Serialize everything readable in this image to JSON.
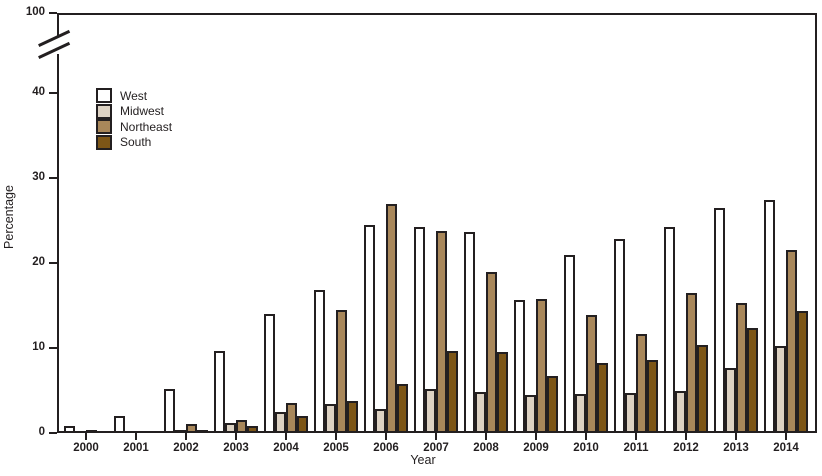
{
  "chart_data": {
    "type": "bar",
    "title": "",
    "xlabel": "Year",
    "ylabel": "Percentage",
    "categories": [
      "2000",
      "2001",
      "2002",
      "2003",
      "2004",
      "2005",
      "2006",
      "2007",
      "2008",
      "2009",
      "2010",
      "2011",
      "2012",
      "2013",
      "2014"
    ],
    "series": [
      {
        "name": "West",
        "color": "#ffffff",
        "values": [
          0.8,
          2.0,
          5.2,
          9.7,
          14.0,
          16.8,
          24.5,
          24.2,
          23.7,
          15.6,
          21.0,
          22.8,
          24.2,
          26.5,
          27.4
        ]
      },
      {
        "name": "Midwest",
        "color": "#ddd2c3",
        "values": [
          0.1,
          0.1,
          0.3,
          1.2,
          2.5,
          3.4,
          2.8,
          5.2,
          4.8,
          4.5,
          4.6,
          4.7,
          4.9,
          7.7,
          10.2
        ]
      },
      {
        "name": "Northeast",
        "color": "#a8875a",
        "values": [
          0.3,
          0.1,
          1.1,
          1.5,
          3.5,
          14.5,
          27.0,
          23.8,
          19.0,
          15.8,
          13.9,
          11.6,
          16.5,
          15.3,
          21.5
        ]
      },
      {
        "name": "South",
        "color": "#7d5617",
        "values": [
          0.1,
          0.1,
          0.4,
          0.8,
          2.0,
          3.8,
          5.8,
          9.6,
          9.5,
          6.7,
          8.2,
          8.6,
          10.3,
          12.3,
          14.4
        ]
      }
    ],
    "y_ticks": [
      0,
      10,
      20,
      30,
      40,
      100
    ],
    "axis_break_between": [
      40,
      100
    ],
    "ylim": [
      0,
      100
    ],
    "legend_position": "top-left",
    "grid": false,
    "outline_color": "#231f20"
  }
}
